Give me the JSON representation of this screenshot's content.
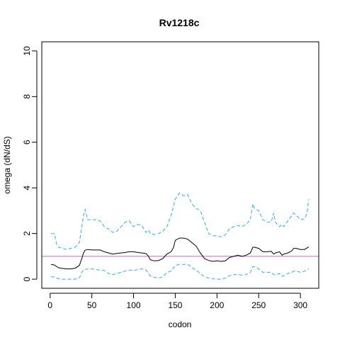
{
  "chart_data": {
    "type": "line",
    "title": "Rv1218c",
    "xlabel": "codon",
    "ylabel": "omega (dN/dS)",
    "xlim": [
      -10,
      322
    ],
    "ylim": [
      -0.4,
      10.4
    ],
    "x_ticks": [
      0,
      50,
      100,
      150,
      200,
      250,
      300
    ],
    "y_ticks": [
      0,
      2,
      4,
      6,
      8,
      10
    ],
    "grid": false,
    "reference_line": {
      "y": 1,
      "color": "#cc66cc"
    },
    "series": [
      {
        "color": "#000000",
        "style": "solid",
        "points": [
          [
            1,
            0.65
          ],
          [
            5,
            0.62
          ],
          [
            10,
            0.5
          ],
          [
            15,
            0.47
          ],
          [
            20,
            0.45
          ],
          [
            25,
            0.45
          ],
          [
            30,
            0.48
          ],
          [
            35,
            0.6
          ],
          [
            38,
            0.9
          ],
          [
            40,
            1.15
          ],
          [
            42,
            1.27
          ],
          [
            45,
            1.3
          ],
          [
            50,
            1.28
          ],
          [
            55,
            1.28
          ],
          [
            60,
            1.28
          ],
          [
            65,
            1.2
          ],
          [
            70,
            1.15
          ],
          [
            75,
            1.1
          ],
          [
            80,
            1.13
          ],
          [
            85,
            1.15
          ],
          [
            90,
            1.17
          ],
          [
            95,
            1.2
          ],
          [
            100,
            1.2
          ],
          [
            105,
            1.17
          ],
          [
            110,
            1.15
          ],
          [
            115,
            1.12
          ],
          [
            118,
            1.0
          ],
          [
            120,
            0.85
          ],
          [
            125,
            0.8
          ],
          [
            130,
            0.82
          ],
          [
            135,
            0.9
          ],
          [
            140,
            1.1
          ],
          [
            145,
            1.2
          ],
          [
            148,
            1.4
          ],
          [
            150,
            1.7
          ],
          [
            155,
            1.8
          ],
          [
            160,
            1.8
          ],
          [
            165,
            1.75
          ],
          [
            170,
            1.6
          ],
          [
            175,
            1.45
          ],
          [
            180,
            1.15
          ],
          [
            185,
            0.9
          ],
          [
            190,
            0.82
          ],
          [
            195,
            0.78
          ],
          [
            200,
            0.8
          ],
          [
            205,
            0.78
          ],
          [
            210,
            0.8
          ],
          [
            215,
            0.95
          ],
          [
            220,
            1.0
          ],
          [
            225,
            1.05
          ],
          [
            230,
            1.0
          ],
          [
            235,
            1.05
          ],
          [
            240,
            1.15
          ],
          [
            243,
            1.4
          ],
          [
            245,
            1.4
          ],
          [
            250,
            1.35
          ],
          [
            255,
            1.2
          ],
          [
            260,
            1.2
          ],
          [
            265,
            1.22
          ],
          [
            268,
            1.1
          ],
          [
            270,
            1.15
          ],
          [
            275,
            1.2
          ],
          [
            278,
            1.05
          ],
          [
            280,
            1.1
          ],
          [
            285,
            1.15
          ],
          [
            290,
            1.25
          ],
          [
            292,
            1.35
          ],
          [
            295,
            1.35
          ],
          [
            300,
            1.3
          ],
          [
            305,
            1.3
          ],
          [
            310,
            1.42
          ]
        ]
      },
      {
        "color": "#33aaee",
        "style": "dashed",
        "points": [
          [
            1,
            2.0
          ],
          [
            5,
            2.0
          ],
          [
            8,
            1.5
          ],
          [
            10,
            1.4
          ],
          [
            15,
            1.35
          ],
          [
            20,
            1.3
          ],
          [
            25,
            1.35
          ],
          [
            30,
            1.4
          ],
          [
            35,
            1.6
          ],
          [
            38,
            2.3
          ],
          [
            40,
            2.8
          ],
          [
            42,
            3.05
          ],
          [
            45,
            2.6
          ],
          [
            50,
            2.6
          ],
          [
            55,
            2.6
          ],
          [
            60,
            2.55
          ],
          [
            65,
            2.3
          ],
          [
            70,
            2.2
          ],
          [
            75,
            2.05
          ],
          [
            80,
            2.1
          ],
          [
            85,
            2.3
          ],
          [
            90,
            2.5
          ],
          [
            95,
            2.55
          ],
          [
            100,
            2.3
          ],
          [
            105,
            2.4
          ],
          [
            110,
            2.35
          ],
          [
            115,
            2.05
          ],
          [
            118,
            2.15
          ],
          [
            120,
            2.0
          ],
          [
            125,
            1.95
          ],
          [
            130,
            2.0
          ],
          [
            135,
            2.1
          ],
          [
            140,
            2.3
          ],
          [
            145,
            2.8
          ],
          [
            148,
            3.2
          ],
          [
            150,
            3.5
          ],
          [
            155,
            3.78
          ],
          [
            160,
            3.65
          ],
          [
            165,
            3.7
          ],
          [
            170,
            3.3
          ],
          [
            175,
            3.1
          ],
          [
            180,
            3.0
          ],
          [
            185,
            2.5
          ],
          [
            190,
            2.0
          ],
          [
            195,
            1.9
          ],
          [
            200,
            1.9
          ],
          [
            205,
            1.85
          ],
          [
            210,
            1.95
          ],
          [
            215,
            2.2
          ],
          [
            220,
            2.3
          ],
          [
            225,
            2.35
          ],
          [
            230,
            2.3
          ],
          [
            235,
            2.4
          ],
          [
            240,
            2.6
          ],
          [
            243,
            3.3
          ],
          [
            245,
            3.1
          ],
          [
            250,
            3.0
          ],
          [
            255,
            2.6
          ],
          [
            260,
            2.5
          ],
          [
            265,
            2.5
          ],
          [
            268,
            2.9
          ],
          [
            270,
            2.5
          ],
          [
            275,
            2.3
          ],
          [
            278,
            2.4
          ],
          [
            280,
            2.3
          ],
          [
            285,
            2.55
          ],
          [
            290,
            2.8
          ],
          [
            292,
            2.9
          ],
          [
            295,
            2.8
          ],
          [
            300,
            2.6
          ],
          [
            305,
            2.65
          ],
          [
            308,
            2.9
          ],
          [
            310,
            3.5
          ]
        ]
      },
      {
        "color": "#33aaee",
        "style": "dashed",
        "points": [
          [
            1,
            0.1
          ],
          [
            5,
            0.1
          ],
          [
            10,
            0.02
          ],
          [
            15,
            0.0
          ],
          [
            20,
            0.0
          ],
          [
            25,
            0.0
          ],
          [
            30,
            0.0
          ],
          [
            35,
            0.05
          ],
          [
            38,
            0.3
          ],
          [
            40,
            0.4
          ],
          [
            45,
            0.45
          ],
          [
            50,
            0.45
          ],
          [
            55,
            0.42
          ],
          [
            60,
            0.4
          ],
          [
            65,
            0.38
          ],
          [
            70,
            0.25
          ],
          [
            75,
            0.2
          ],
          [
            80,
            0.25
          ],
          [
            85,
            0.3
          ],
          [
            90,
            0.35
          ],
          [
            95,
            0.4
          ],
          [
            100,
            0.38
          ],
          [
            105,
            0.42
          ],
          [
            110,
            0.45
          ],
          [
            115,
            0.4
          ],
          [
            120,
            0.15
          ],
          [
            125,
            0.08
          ],
          [
            130,
            0.05
          ],
          [
            135,
            0.1
          ],
          [
            140,
            0.3
          ],
          [
            145,
            0.35
          ],
          [
            150,
            0.6
          ],
          [
            155,
            0.65
          ],
          [
            160,
            0.65
          ],
          [
            165,
            0.65
          ],
          [
            170,
            0.5
          ],
          [
            175,
            0.4
          ],
          [
            180,
            0.25
          ],
          [
            185,
            0.1
          ],
          [
            190,
            0.05
          ],
          [
            195,
            0.02
          ],
          [
            200,
            0.0
          ],
          [
            205,
            0.0
          ],
          [
            210,
            0.05
          ],
          [
            215,
            0.15
          ],
          [
            220,
            0.2
          ],
          [
            225,
            0.2
          ],
          [
            230,
            0.18
          ],
          [
            235,
            0.2
          ],
          [
            240,
            0.3
          ],
          [
            243,
            0.55
          ],
          [
            245,
            0.55
          ],
          [
            250,
            0.45
          ],
          [
            255,
            0.3
          ],
          [
            260,
            0.3
          ],
          [
            265,
            0.3
          ],
          [
            268,
            0.2
          ],
          [
            270,
            0.2
          ],
          [
            275,
            0.25
          ],
          [
            278,
            0.12
          ],
          [
            280,
            0.15
          ],
          [
            285,
            0.25
          ],
          [
            290,
            0.3
          ],
          [
            292,
            0.35
          ],
          [
            295,
            0.35
          ],
          [
            300,
            0.3
          ],
          [
            305,
            0.35
          ],
          [
            310,
            0.45
          ]
        ]
      }
    ]
  }
}
